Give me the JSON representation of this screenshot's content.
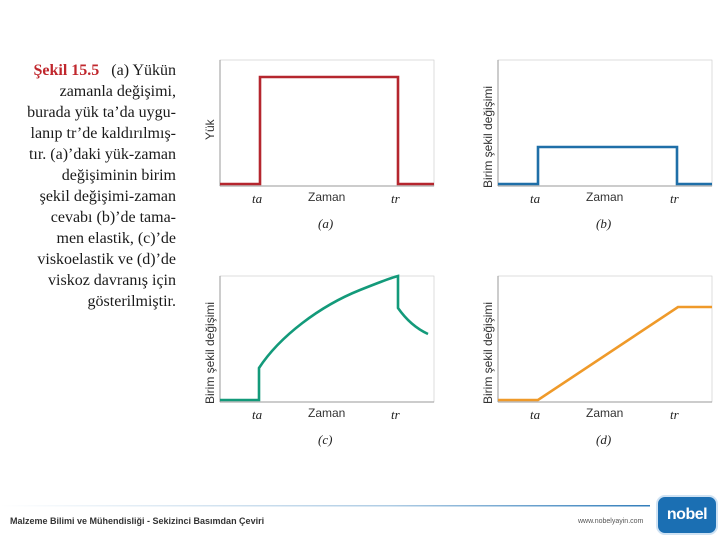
{
  "caption": {
    "label": "Şekil 15.5",
    "first_line": "(a) Yükün",
    "lines": [
      "zamanla değişimi,",
      "burada yük ta’da uygu-",
      "lanıp tr’de kaldırılmış-",
      "tır. (a)’daki yük-zaman",
      "değişiminin birim",
      "şekil değişimi-zaman",
      "cevabı (b)’de tama-",
      "men elastik, (c)’de",
      "viskoelastik ve (d)’de",
      "viskoz davranış için",
      "gösterilmiştir."
    ]
  },
  "panels": {
    "a": {
      "ylabel": "Yük",
      "xlabel": "Zaman",
      "ta": "ta",
      "tr": "tr",
      "label": "(a)",
      "color": "#b5262e"
    },
    "b": {
      "ylabel": "Birim şekil değişimi",
      "xlabel": "Zaman",
      "ta": "ta",
      "tr": "tr",
      "label": "(b)",
      "color": "#1f6fa8"
    },
    "c": {
      "ylabel": "Birim şekil değişimi",
      "xlabel": "Zaman",
      "ta": "ta",
      "tr": "tr",
      "label": "(c)",
      "color": "#139a7a"
    },
    "d": {
      "ylabel": "Birim şekil değişimi",
      "xlabel": "Zaman",
      "ta": "ta",
      "tr": "tr",
      "label": "(d)",
      "color": "#ef9a2a"
    }
  },
  "footer": {
    "book_title": "Malzeme Bilimi ve Mühendisliği - Sekizinci Basımdan Çeviri",
    "url": "www.nobelyayin.com",
    "logo_text": "nobel"
  }
}
